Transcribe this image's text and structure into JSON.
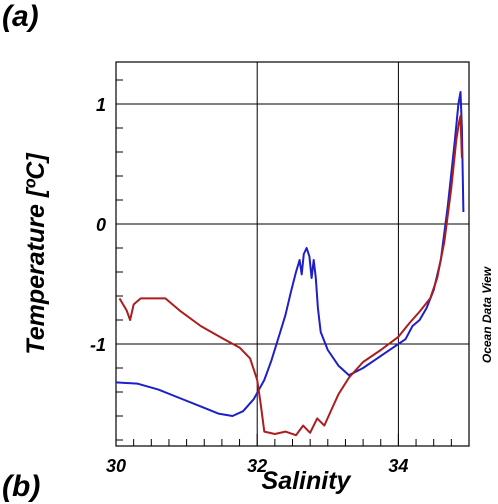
{
  "panel_labels": {
    "top": "(a)",
    "bottom": "(b)"
  },
  "chart_data": {
    "type": "line",
    "title": "",
    "xlabel": "Salinity",
    "ylabel": "Temperature [ºC]",
    "side_label": "Ocean Data View",
    "xlim": [
      30,
      35
    ],
    "ylim": [
      -1.85,
      1.35
    ],
    "x_ticks": [
      {
        "value": 30,
        "label": "30"
      },
      {
        "value": 32,
        "label": "32"
      },
      {
        "value": 34,
        "label": "34"
      }
    ],
    "y_ticks": [
      {
        "value": 1,
        "label": "1"
      },
      {
        "value": 0,
        "label": "0"
      },
      {
        "value": -1,
        "label": "-1"
      }
    ],
    "x_minor_step": 0.25,
    "y_minor_step": 0.2,
    "grid_x": [
      32,
      34
    ],
    "grid_y": [
      1,
      0,
      -1
    ],
    "grid": true,
    "series": [
      {
        "color": "#1f1fc8",
        "points": [
          [
            30,
            -1.32
          ],
          [
            30.3,
            -1.33
          ],
          [
            30.6,
            -1.38
          ],
          [
            30.9,
            -1.45
          ],
          [
            31.2,
            -1.52
          ],
          [
            31.45,
            -1.58
          ],
          [
            31.65,
            -1.6
          ],
          [
            31.8,
            -1.56
          ],
          [
            31.95,
            -1.46
          ],
          [
            32.1,
            -1.3
          ],
          [
            32.2,
            -1.14
          ],
          [
            32.3,
            -0.95
          ],
          [
            32.4,
            -0.76
          ],
          [
            32.48,
            -0.56
          ],
          [
            32.55,
            -0.4
          ],
          [
            32.6,
            -0.3
          ],
          [
            32.63,
            -0.42
          ],
          [
            32.66,
            -0.25
          ],
          [
            32.7,
            -0.2
          ],
          [
            32.74,
            -0.27
          ],
          [
            32.77,
            -0.45
          ],
          [
            32.8,
            -0.3
          ],
          [
            32.83,
            -0.45
          ],
          [
            32.86,
            -0.7
          ],
          [
            32.9,
            -0.9
          ],
          [
            33.0,
            -1.05
          ],
          [
            33.15,
            -1.18
          ],
          [
            33.3,
            -1.26
          ],
          [
            33.5,
            -1.2
          ],
          [
            33.7,
            -1.12
          ],
          [
            33.9,
            -1.04
          ],
          [
            34.1,
            -0.96
          ],
          [
            34.2,
            -0.85
          ],
          [
            34.3,
            -0.8
          ],
          [
            34.4,
            -0.7
          ],
          [
            34.5,
            -0.55
          ],
          [
            34.6,
            -0.3
          ],
          [
            34.7,
            0.15
          ],
          [
            34.8,
            0.7
          ],
          [
            34.85,
            1.0
          ],
          [
            34.88,
            1.1
          ],
          [
            34.9,
            0.8
          ],
          [
            34.92,
            0.1
          ]
        ]
      },
      {
        "color": "#aa1e1e",
        "points": [
          [
            30.05,
            -0.62
          ],
          [
            30.15,
            -0.72
          ],
          [
            30.2,
            -0.8
          ],
          [
            30.25,
            -0.67
          ],
          [
            30.35,
            -0.62
          ],
          [
            30.5,
            -0.62
          ],
          [
            30.7,
            -0.62
          ],
          [
            30.9,
            -0.72
          ],
          [
            31.2,
            -0.85
          ],
          [
            31.5,
            -0.95
          ],
          [
            31.75,
            -1.03
          ],
          [
            31.9,
            -1.12
          ],
          [
            32.0,
            -1.3
          ],
          [
            32.05,
            -1.5
          ],
          [
            32.1,
            -1.73
          ],
          [
            32.25,
            -1.75
          ],
          [
            32.4,
            -1.73
          ],
          [
            32.55,
            -1.76
          ],
          [
            32.65,
            -1.68
          ],
          [
            32.75,
            -1.74
          ],
          [
            32.85,
            -1.62
          ],
          [
            32.95,
            -1.68
          ],
          [
            33.05,
            -1.55
          ],
          [
            33.15,
            -1.42
          ],
          [
            33.3,
            -1.28
          ],
          [
            33.5,
            -1.15
          ],
          [
            33.75,
            -1.05
          ],
          [
            34.0,
            -0.94
          ],
          [
            34.15,
            -0.83
          ],
          [
            34.3,
            -0.73
          ],
          [
            34.45,
            -0.62
          ],
          [
            34.55,
            -0.45
          ],
          [
            34.65,
            -0.15
          ],
          [
            34.75,
            0.3
          ],
          [
            34.82,
            0.7
          ],
          [
            34.86,
            0.85
          ],
          [
            34.88,
            0.9
          ],
          [
            34.9,
            0.55
          ]
        ]
      }
    ]
  }
}
